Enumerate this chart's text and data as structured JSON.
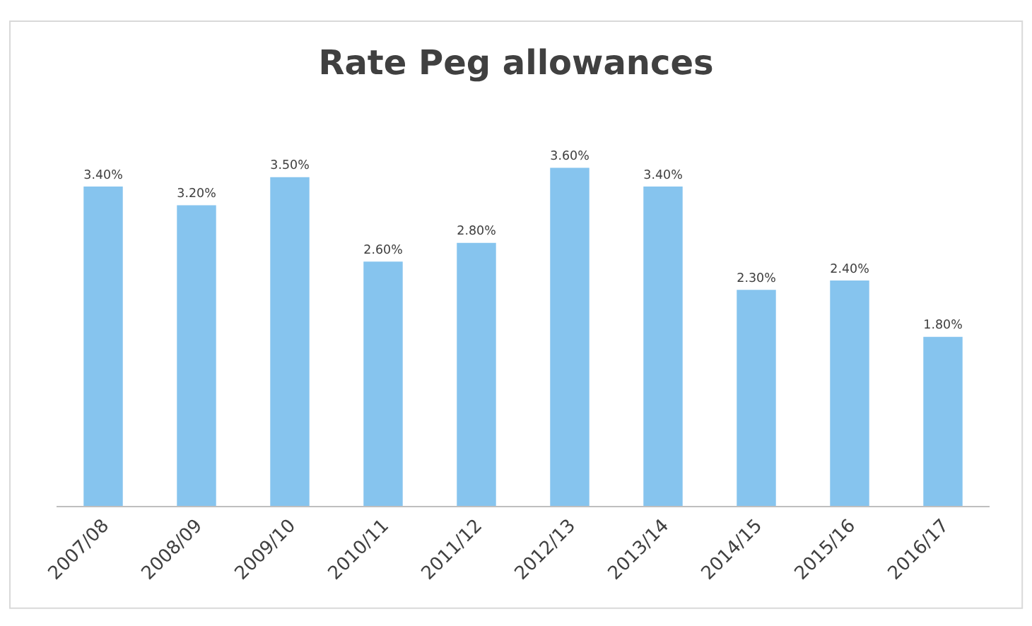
{
  "chart_data": {
    "type": "bar",
    "title": "Rate Peg allowances",
    "categories": [
      "2007/08",
      "2008/09",
      "2009/10",
      "2010/11",
      "2011/12",
      "2012/13",
      "2013/14",
      "2014/15",
      "2015/16",
      "2016/17"
    ],
    "values": [
      3.4,
      3.2,
      3.5,
      2.6,
      2.8,
      3.6,
      3.4,
      2.3,
      2.4,
      1.8
    ],
    "value_labels": [
      "3.40%",
      "3.20%",
      "3.50%",
      "2.60%",
      "2.80%",
      "3.60%",
      "3.40%",
      "2.30%",
      "2.40%",
      "1.80%"
    ],
    "color": "#86c4ee",
    "legend": false
  }
}
